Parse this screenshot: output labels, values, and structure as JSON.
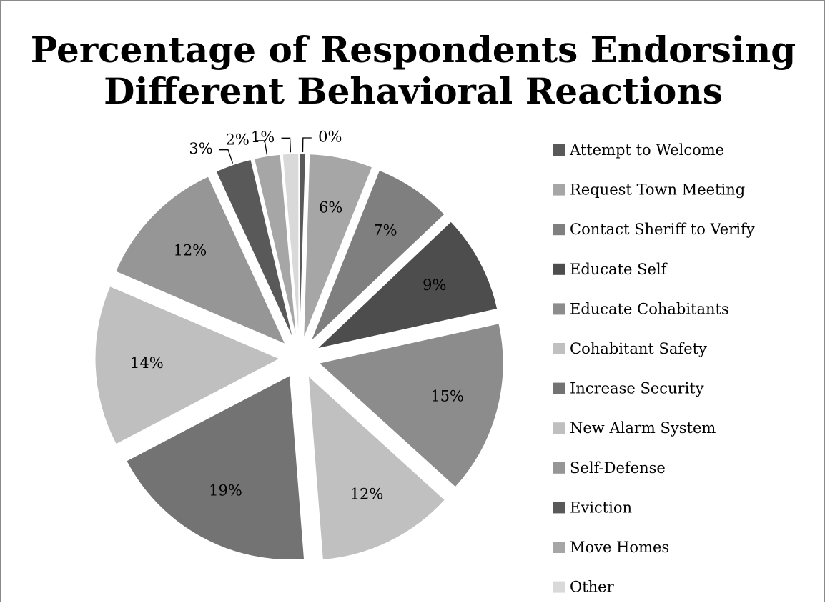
{
  "chart_data": {
    "type": "pie",
    "title_lines": [
      "Percentage of Respondents Endorsing",
      "Different Behavioral Reactions"
    ],
    "legend_position": "right",
    "exploded": true,
    "slices": [
      {
        "name": "Attempt to Welcome",
        "value": 0.5,
        "label": "0%",
        "color": "#595959"
      },
      {
        "name": "Request Town Meeting",
        "value": 5.6,
        "label": "6%",
        "color": "#a6a6a6"
      },
      {
        "name": "Contact Sheriff to Verify",
        "value": 6.9,
        "label": "7%",
        "color": "#7f7f7f"
      },
      {
        "name": "Educate Self",
        "value": 8.7,
        "label": "9%",
        "color": "#4d4d4d"
      },
      {
        "name": "Educate Cohabitants",
        "value": 15.3,
        "label": "15%",
        "color": "#8c8c8c"
      },
      {
        "name": "Cohabitant Safety",
        "value": 12.1,
        "label": "12%",
        "color": "#c0c0c0"
      },
      {
        "name": "Increase Security",
        "value": 18.7,
        "label": "19%",
        "color": "#737373"
      },
      {
        "name": "New Alarm System",
        "value": 14.2,
        "label": "14%",
        "color": "#bfbfbf"
      },
      {
        "name": "Self-Defense",
        "value": 11.8,
        "label": "12%",
        "color": "#969696"
      },
      {
        "name": "Eviction",
        "value": 3.2,
        "label": "3%",
        "color": "#595959"
      },
      {
        "name": "Move Homes",
        "value": 2.3,
        "label": "2%",
        "color": "#a6a6a6"
      },
      {
        "name": "Other",
        "value": 1.4,
        "label": "1%",
        "color": "#d9d9d9"
      }
    ]
  }
}
